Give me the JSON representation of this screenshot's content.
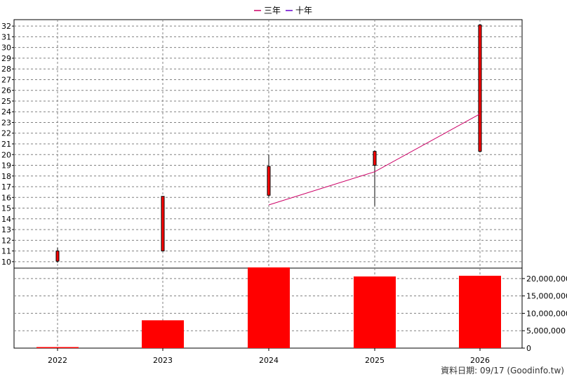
{
  "chart_data": {
    "type": "candlestick+bar",
    "legend": [
      {
        "name": "三年",
        "color": "#cc0066"
      },
      {
        "name": "十年",
        "color": "#6600cc"
      }
    ],
    "categories": [
      "2022",
      "2023",
      "2024",
      "2025",
      "2026"
    ],
    "price": {
      "ylim": [
        9.4,
        32.6
      ],
      "ticks": [
        10,
        11,
        12,
        13,
        14,
        15,
        16,
        17,
        18,
        19,
        20,
        21,
        22,
        23,
        24,
        25,
        26,
        27,
        28,
        29,
        30,
        31,
        32
      ],
      "candles": [
        {
          "x": "2022",
          "open": 10.05,
          "high": 11.3,
          "low": 9.9,
          "close": 11.0
        },
        {
          "x": "2023",
          "open": 11.0,
          "high": 16.1,
          "low": 11.0,
          "close": 16.1
        },
        {
          "x": "2024",
          "open": 16.2,
          "high": 20.0,
          "low": 16.0,
          "close": 18.9
        },
        {
          "x": "2025",
          "open": 19.0,
          "high": 20.4,
          "low": 15.2,
          "close": 20.3
        },
        {
          "x": "2026",
          "open": 20.3,
          "high": 32.2,
          "low": 20.2,
          "close": 32.1
        }
      ],
      "three_year_line": [
        {
          "x": "2024",
          "y": 15.3
        },
        {
          "x": "2025",
          "y": 18.4
        },
        {
          "x": "2026",
          "y": 23.8
        }
      ]
    },
    "volume": {
      "ylim": [
        0,
        23000000
      ],
      "ticks": [
        0,
        5000000,
        10000000,
        15000000,
        20000000
      ],
      "tick_labels": [
        "0",
        "5,000,000",
        "10,000,000",
        "15,000,000",
        "20,000,000"
      ],
      "values": [
        300000,
        8000000,
        23200000,
        20600000,
        20800000
      ]
    },
    "grid": true
  },
  "colors": {
    "candle": "#ff0000",
    "volume": "#ff0000",
    "grid": "#808080"
  },
  "source_label": "資料日期: 09/17  (Goodinfo.tw)"
}
